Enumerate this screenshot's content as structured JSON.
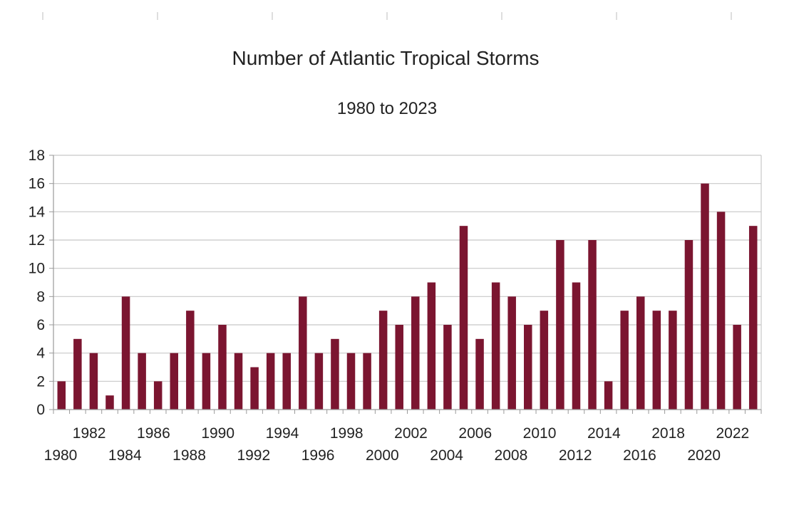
{
  "chart_data": {
    "type": "bar",
    "title": "Number of Atlantic Tropical Storms",
    "subtitle": "1980 to 2023",
    "xlabel": "",
    "ylabel": "",
    "ylim": [
      0,
      18
    ],
    "y_ticks": [
      0,
      2,
      4,
      6,
      8,
      10,
      12,
      14,
      16,
      18
    ],
    "grid": true,
    "legend": "none",
    "bar_color": "#7b1530",
    "categories": [
      1980,
      1981,
      1982,
      1983,
      1984,
      1985,
      1986,
      1987,
      1988,
      1989,
      1990,
      1991,
      1992,
      1993,
      1994,
      1995,
      1996,
      1997,
      1998,
      1999,
      2000,
      2001,
      2002,
      2003,
      2004,
      2005,
      2006,
      2007,
      2008,
      2009,
      2010,
      2011,
      2012,
      2013,
      2014,
      2015,
      2016,
      2017,
      2018,
      2019,
      2020,
      2021,
      2022,
      2023
    ],
    "values": [
      2,
      5,
      4,
      1,
      8,
      4,
      2,
      4,
      7,
      4,
      6,
      4,
      3,
      4,
      4,
      8,
      4,
      5,
      4,
      4,
      7,
      6,
      8,
      9,
      6,
      13,
      5,
      9,
      8,
      6,
      7,
      12,
      9,
      12,
      2,
      7,
      8,
      7,
      7,
      12,
      16,
      14,
      6,
      13
    ],
    "x_tick_labels_upper": [
      "1982",
      "1986",
      "1990",
      "1994",
      "1998",
      "2002",
      "2006",
      "2010",
      "2014",
      "2018",
      "2022"
    ],
    "x_tick_labels_lower": [
      "1980",
      "1984",
      "1988",
      "1992",
      "1996",
      "2000",
      "2004",
      "2008",
      "2012",
      "2016",
      "2020"
    ]
  }
}
